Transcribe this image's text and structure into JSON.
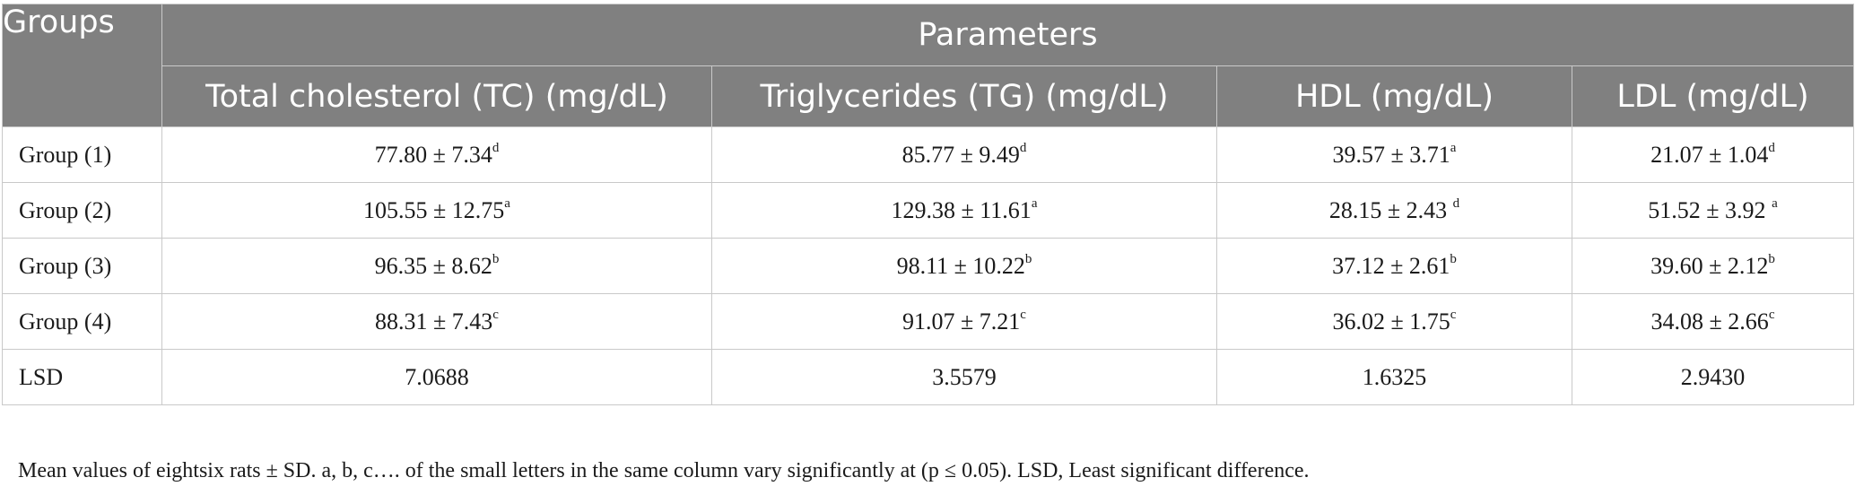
{
  "table": {
    "groups_header": "Groups",
    "parameters_header": "Parameters",
    "columns": [
      "Total cholesterol (TC) (mg/dL)",
      "Triglycerides (TG) (mg/dL)",
      "HDL (mg/dL)",
      "LDL (mg/dL)"
    ],
    "rows": [
      {
        "label": "Group (1)",
        "cells": [
          {
            "value": "77.80 ± 7.34",
            "sup": "d"
          },
          {
            "value": "85.77 ± 9.49",
            "sup": "d"
          },
          {
            "value": "39.57 ± 3.71",
            "sup": "a"
          },
          {
            "value": "21.07 ± 1.04",
            "sup": "d"
          }
        ]
      },
      {
        "label": "Group (2)",
        "cells": [
          {
            "value": "105.55 ± 12.75",
            "sup": "a"
          },
          {
            "value": "129.38 ± 11.61",
            "sup": "a"
          },
          {
            "value": "28.15 ± 2.43 ",
            "sup": "d"
          },
          {
            "value": "51.52 ± 3.92 ",
            "sup": "a"
          }
        ]
      },
      {
        "label": "Group (3)",
        "cells": [
          {
            "value": "96.35 ± 8.62",
            "sup": "b"
          },
          {
            "value": "98.11 ± 10.22",
            "sup": "b"
          },
          {
            "value": "37.12 ± 2.61",
            "sup": "b"
          },
          {
            "value": "39.60 ± 2.12",
            "sup": "b"
          }
        ]
      },
      {
        "label": "Group (4)",
        "cells": [
          {
            "value": "88.31 ± 7.43",
            "sup": "c"
          },
          {
            "value": "91.07 ± 7.21",
            "sup": "c"
          },
          {
            "value": "36.02 ± 1.75",
            "sup": "c"
          },
          {
            "value": "34.08 ± 2.66",
            "sup": "c"
          }
        ]
      },
      {
        "label": "LSD",
        "cells": [
          {
            "value": "7.0688",
            "sup": ""
          },
          {
            "value": "3.5579",
            "sup": ""
          },
          {
            "value": "1.6325",
            "sup": ""
          },
          {
            "value": "2.9430",
            "sup": ""
          }
        ]
      }
    ]
  },
  "footnote": "Mean values of eightsix rats ± SD. a, b, c…. of the small letters in the same column vary significantly at (p ≤ 0.05). LSD, Least significant difference."
}
